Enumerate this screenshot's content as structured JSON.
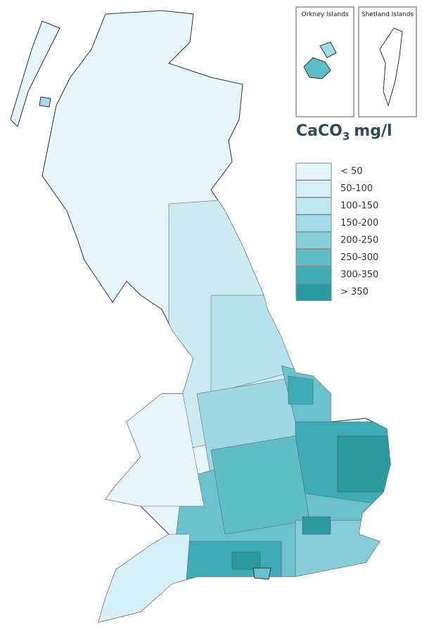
{
  "insets": [
    {
      "label": "Orkney Islands"
    },
    {
      "label": "Shetland Islands"
    }
  ],
  "title": {
    "main": "CaCO",
    "subscript": "3",
    "unit": "mg/l"
  },
  "legend": [
    {
      "label": "< 50",
      "color": "#e6f5fa"
    },
    {
      "label": "50-100",
      "color": "#d4eff5"
    },
    {
      "label": "100-150",
      "color": "#bde6ee"
    },
    {
      "label": "150-200",
      "color": "#a3dbe6"
    },
    {
      "label": "200-250",
      "color": "#84cdd9"
    },
    {
      "label": "250-300",
      "color": "#5fbdc8"
    },
    {
      "label": "300-350",
      "color": "#3eacb6"
    },
    {
      "label": "> 350",
      "color": "#2a9aa0"
    }
  ]
}
